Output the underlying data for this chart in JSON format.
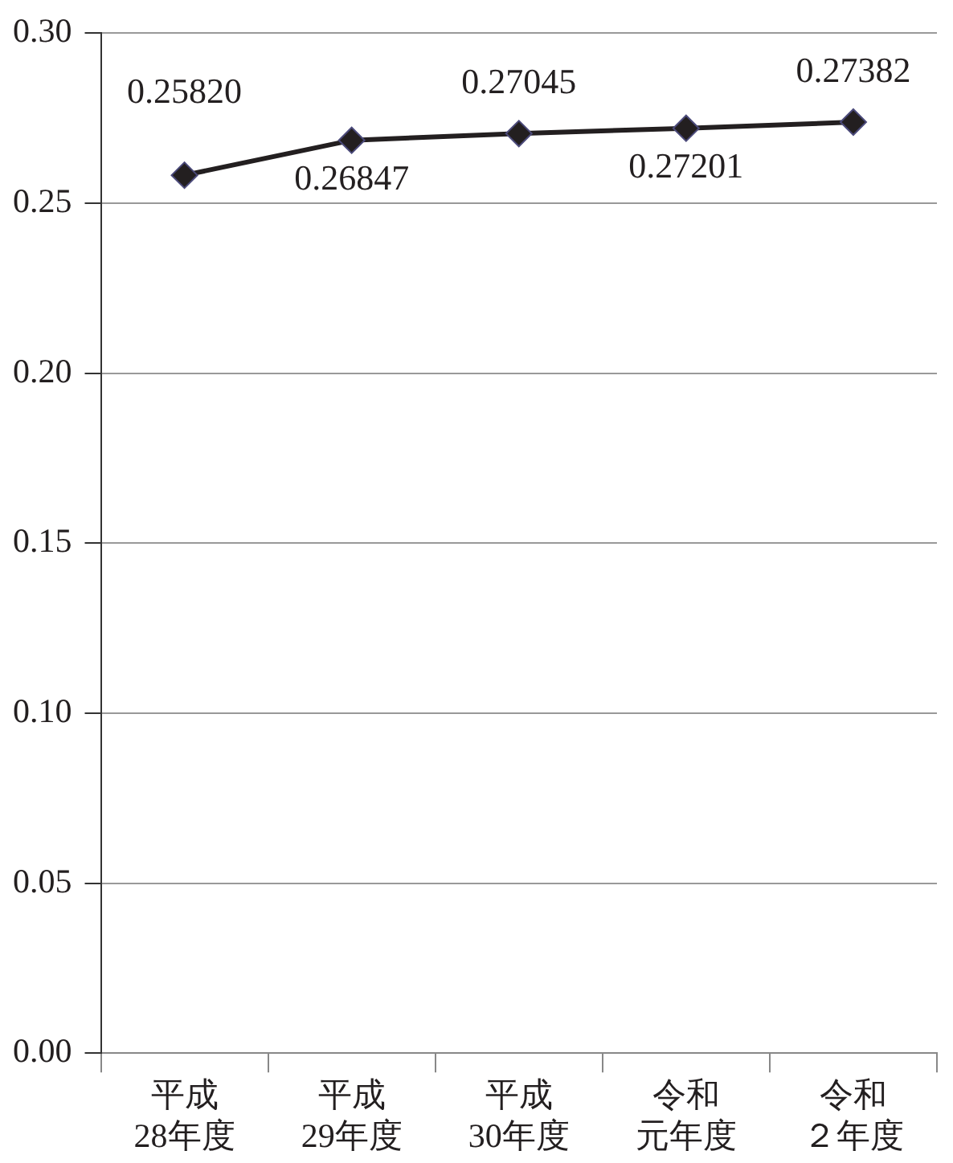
{
  "chart_data": {
    "type": "line",
    "categories": [
      "平成28年度",
      "平成29年度",
      "平成30年度",
      "令和元年度",
      "令和２年度"
    ],
    "series": [
      {
        "color": "#231f20",
        "values": [
          0.2582,
          0.26847,
          0.27045,
          0.27201,
          0.27382
        ],
        "value_labels": [
          "0.25820",
          "0.26847",
          "0.27045",
          "0.27201",
          "0.27382"
        ]
      }
    ],
    "ylim": [
      0,
      0.3
    ],
    "yticks": [
      {
        "value": 0,
        "label": "0.00"
      },
      {
        "value": 0.05,
        "label": "0.05"
      },
      {
        "value": 0.1,
        "label": "0.10"
      },
      {
        "value": 0.15,
        "label": "0.15"
      },
      {
        "value": 0.2,
        "label": "0.20"
      },
      {
        "value": 0.25,
        "label": "0.25"
      },
      {
        "value": 0.3,
        "label": "0.30"
      }
    ],
    "grid": "y",
    "legend": false,
    "marker": "diamond",
    "line_style": "solid"
  }
}
